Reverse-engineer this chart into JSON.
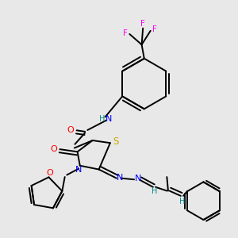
{
  "bg_color": "#e8e8e8",
  "atom_colors": {
    "C": "#000000",
    "N": "#0000ff",
    "O": "#ff0000",
    "S": "#ccaa00",
    "F": "#ff00ff",
    "H": "#008888"
  },
  "figsize": [
    3.0,
    3.0
  ],
  "dpi": 100,
  "lw": 1.4
}
